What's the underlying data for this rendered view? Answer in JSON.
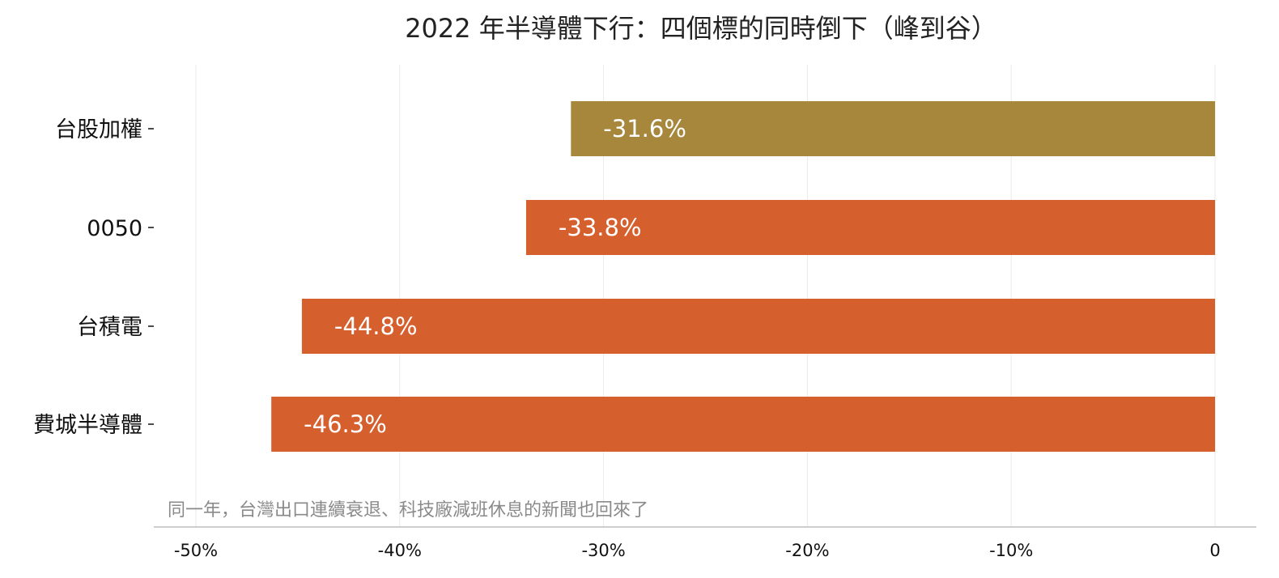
{
  "chart_data": {
    "type": "bar",
    "orientation": "horizontal",
    "title": "2022 年半導體下行：四個標的同時倒下（峰到谷）",
    "categories": [
      "台股加權",
      "0050",
      "台積電",
      "費城半導體"
    ],
    "values": [
      -31.6,
      -33.8,
      -44.8,
      -46.3
    ],
    "data_labels": [
      "-31.6%",
      "-33.8%",
      "-44.8%",
      "-46.3%"
    ],
    "bar_colors": [
      "#a6873b",
      "#d65f2e",
      "#d65f2e",
      "#d65f2e"
    ],
    "xlim": [
      -50,
      0
    ],
    "x_ticks": [
      -50,
      -40,
      -30,
      -20,
      -10,
      0
    ],
    "x_tick_labels": [
      "-50%",
      "-40%",
      "-30%",
      "-20%",
      "-10%",
      "0"
    ],
    "xlabel": "",
    "ylabel": "",
    "grid": "vertical",
    "annotation": "同一年，台灣出口連續衰退、科技廠減班休息的新聞也回來了"
  },
  "colors": {
    "grid": "#eaeaea",
    "axis": "#bdbdbd",
    "note": "#8a8a8a"
  }
}
